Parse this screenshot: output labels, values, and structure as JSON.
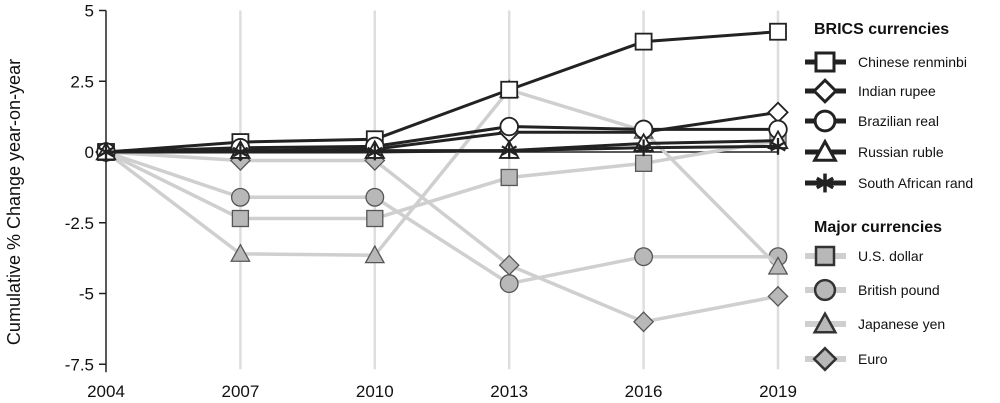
{
  "chart_data": {
    "type": "line",
    "title": "",
    "xlabel": "",
    "ylabel": "Cumulative % Change year-on-year",
    "x": [
      "2004",
      "2007",
      "2010",
      "2013",
      "2016",
      "2019"
    ],
    "y_ticks": [
      "5",
      "2.5",
      "0",
      "-2.5",
      "-5",
      "-7.5"
    ],
    "ylim": [
      -7.5,
      5
    ],
    "grid": "vertical",
    "legend_position": "right",
    "groups": [
      {
        "heading": "BRICS currencies",
        "color": "#222222",
        "marker_fill": "#ffffff",
        "series": [
          {
            "name": "Chinese renminbi",
            "marker": "square",
            "values": [
              0,
              0.35,
              0.45,
              2.2,
              3.9,
              4.25
            ]
          },
          {
            "name": "Indian rupee",
            "marker": "diamond",
            "values": [
              0,
              0.05,
              0.1,
              0.7,
              0.7,
              1.4
            ]
          },
          {
            "name": "Brazilian real",
            "marker": "circle",
            "values": [
              0,
              0.15,
              0.2,
              0.9,
              0.8,
              0.8
            ]
          },
          {
            "name": "Russian ruble",
            "marker": "triangle",
            "values": [
              0,
              0.05,
              0.05,
              0.05,
              0.3,
              0.4
            ]
          },
          {
            "name": "South African rand",
            "marker": "asterisk",
            "values": [
              0,
              0.0,
              0.0,
              0.05,
              0.15,
              0.2
            ]
          }
        ]
      },
      {
        "heading": "Major currencies",
        "color": "#cfcfcf",
        "marker_fill": "#b8b8b8",
        "series": [
          {
            "name": "U.S. dollar",
            "marker": "square",
            "values": [
              0,
              -2.35,
              -2.35,
              -0.9,
              -0.4,
              0.4
            ]
          },
          {
            "name": "British pound",
            "marker": "circle",
            "values": [
              0,
              -1.6,
              -1.6,
              -4.65,
              -3.7,
              -3.7
            ]
          },
          {
            "name": "Japanese yen",
            "marker": "triangle",
            "values": [
              0,
              -3.6,
              -3.65,
              2.2,
              0.75,
              -4.05
            ]
          },
          {
            "name": "Euro",
            "marker": "diamond",
            "values": [
              0,
              -0.3,
              -0.3,
              -4.0,
              -6.0,
              -5.1
            ]
          }
        ]
      }
    ]
  }
}
